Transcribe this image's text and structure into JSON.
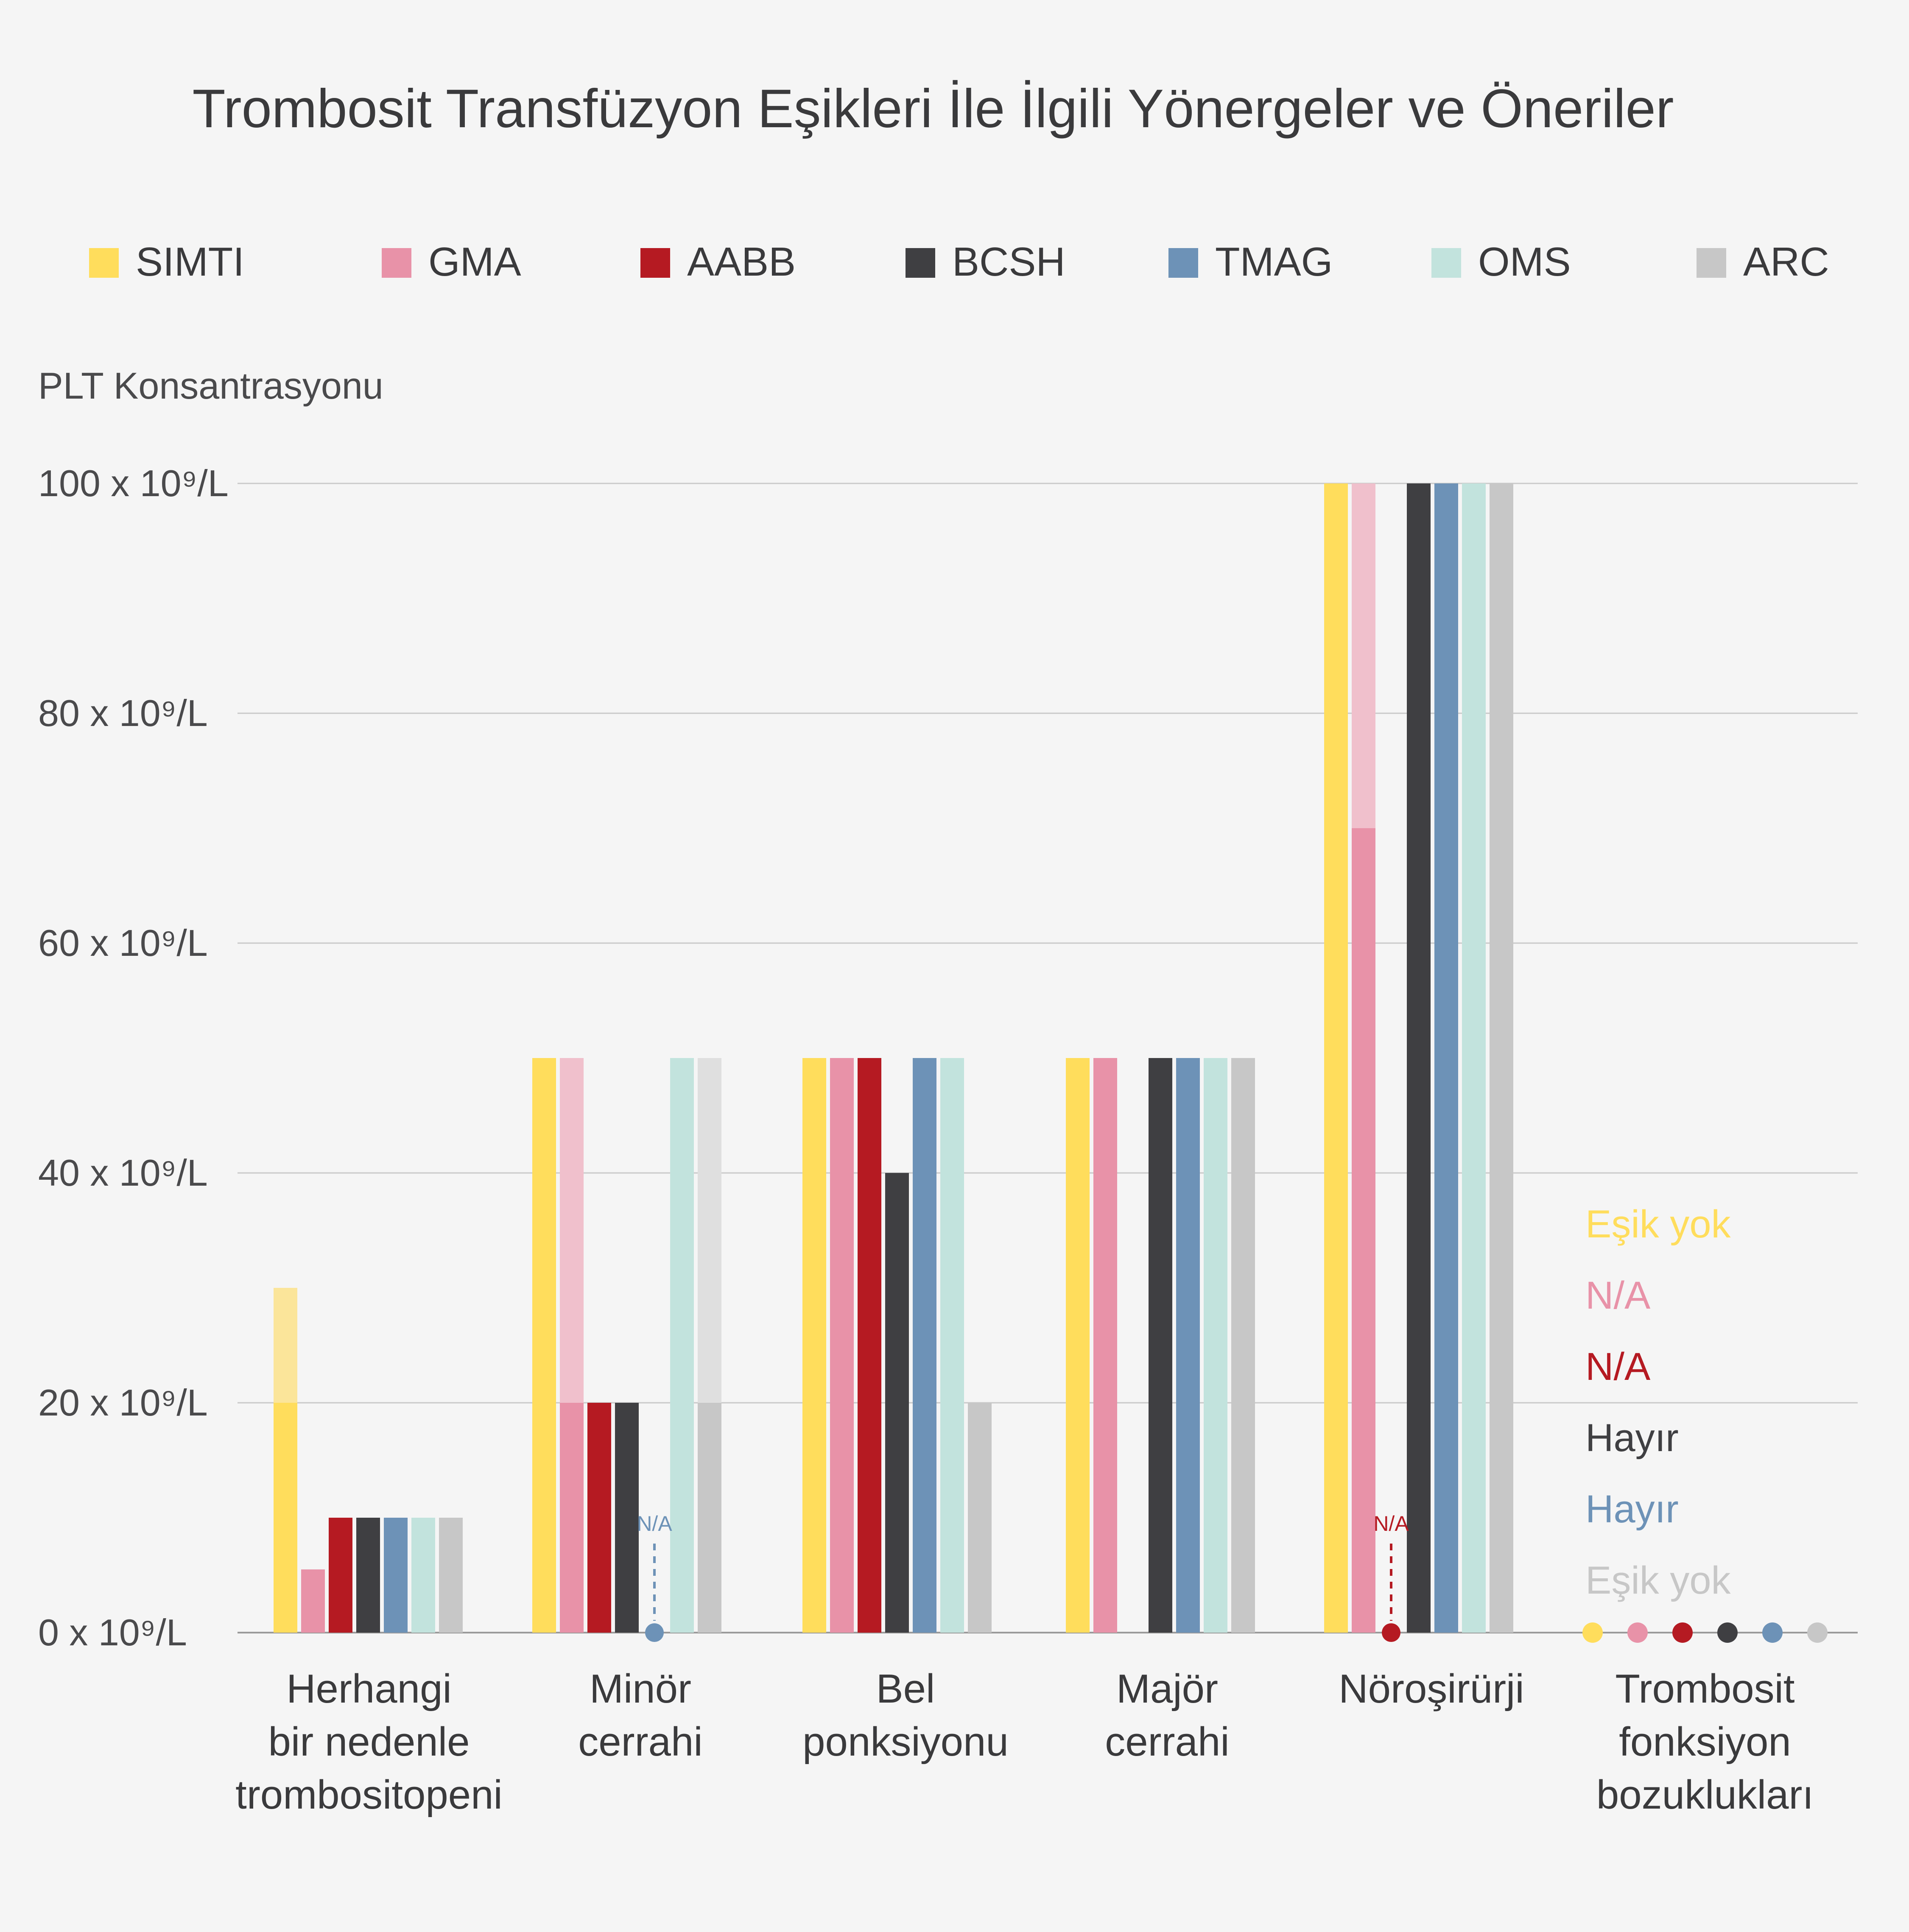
{
  "chart_data": {
    "type": "bar",
    "title": "Trombosit Transfüzyon Eşikleri İle İlgili Yönergeler ve Öneriler",
    "ylabel": "PLT Konsantrasyonu",
    "ylim": [
      0,
      100
    ],
    "yticks": [
      {
        "value": 0,
        "label": "0 x 10⁹/L"
      },
      {
        "value": 20,
        "label": "20 x 10⁹/L"
      },
      {
        "value": 40,
        "label": "40 x 10⁹/L"
      },
      {
        "value": 60,
        "label": "60 x 10⁹/L"
      },
      {
        "value": 80,
        "label": "80 x 10⁹/L"
      },
      {
        "value": 100,
        "label": "100 x 10⁹/L"
      }
    ],
    "grid": true,
    "legend_position": "top",
    "categories": [
      [
        "Herhangi",
        "bir nedenle",
        "trombositopeni"
      ],
      [
        "Minör",
        "cerrahi"
      ],
      [
        "Bel",
        "ponksiyonu"
      ],
      [
        "Majör",
        "cerrahi"
      ],
      [
        "Nöroşirürji"
      ],
      [
        "Trombosit",
        "fonksiyon",
        "bozuklukları"
      ]
    ],
    "series": [
      {
        "name": "SIMTI",
        "color": "#ffdd5c",
        "light_color": "#fbe59a",
        "values": [
          [
            20,
            30
          ],
          50,
          50,
          50,
          100,
          null
        ]
      },
      {
        "name": "GMA",
        "color": "#e892a8",
        "light_color": "#f0c0cc",
        "values": [
          5.5,
          [
            20,
            50
          ],
          50,
          50,
          [
            70,
            100
          ],
          null
        ]
      },
      {
        "name": "AABB",
        "color": "#b51a22",
        "light_color": "#d36a70",
        "values": [
          10,
          20,
          50,
          null,
          null,
          null
        ]
      },
      {
        "name": "BCSH",
        "color": "#3f3f42",
        "light_color": "#8a8a8c",
        "values": [
          10,
          20,
          40,
          50,
          100,
          null
        ]
      },
      {
        "name": "TMAG",
        "color": "#6d92b7",
        "light_color": "#a9c0d6",
        "values": [
          10,
          null,
          50,
          50,
          100,
          null
        ]
      },
      {
        "name": "OMS",
        "color": "#c2e3dd",
        "light_color": "#dcefeb",
        "values": [
          10,
          50,
          50,
          50,
          100,
          null
        ]
      },
      {
        "name": "ARC",
        "color": "#c7c7c7",
        "light_color": "#dfdfdf",
        "values": [
          10,
          [
            20,
            50
          ],
          20,
          50,
          100,
          null
        ]
      }
    ],
    "annotations": [
      {
        "category": 1,
        "series": "TMAG",
        "text": "N/A"
      },
      {
        "category": 4,
        "series": "AABB",
        "text": "N/A"
      }
    ],
    "last_category_labels": [
      {
        "series": "SIMTI",
        "text": "Eşik yok"
      },
      {
        "series": "GMA",
        "text": "N/A"
      },
      {
        "series": "AABB",
        "text": "N/A"
      },
      {
        "series": "BCSH",
        "text": "Hayır"
      },
      {
        "series": "TMAG",
        "text": "Hayır"
      },
      {
        "series": "ARC",
        "text": "Eşik yok"
      }
    ]
  }
}
